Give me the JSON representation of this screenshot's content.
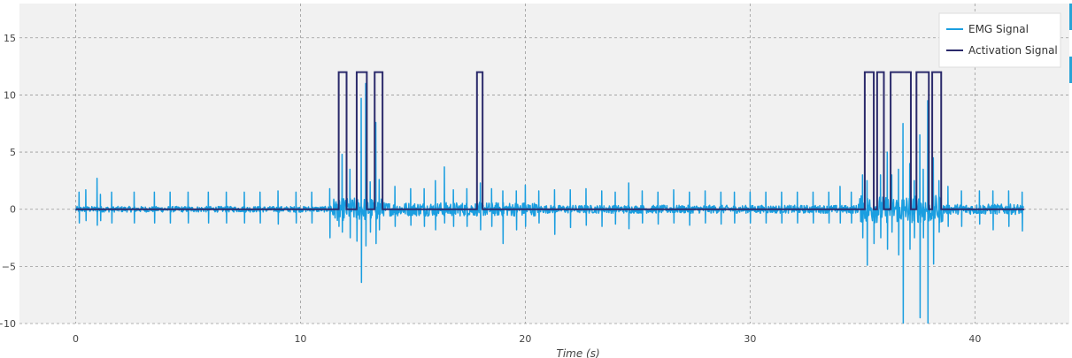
{
  "chart_data": {
    "type": "line",
    "title": "",
    "xlabel": "Time (s)",
    "ylabel": "",
    "xlim": [
      -2.5,
      44.2
    ],
    "ylim": [
      -10,
      18
    ],
    "x_ticks": [
      0,
      10,
      20,
      30,
      40
    ],
    "y_ticks": [
      -10,
      -5,
      0,
      5,
      10,
      15
    ],
    "grid": true,
    "legend_position": "top-right",
    "background": "#f1f1f1",
    "series": [
      {
        "name": "EMG Signal",
        "color": "#1a9ee0",
        "kind": "emg",
        "x_range": [
          0,
          42.2
        ],
        "spikes": [
          [
            0.15,
            1.5,
            -1.2
          ],
          [
            0.45,
            1.7,
            -1.0
          ],
          [
            0.95,
            2.7,
            -1.4
          ],
          [
            1.1,
            1.3,
            -1.0
          ],
          [
            1.6,
            1.5,
            -1.2
          ],
          [
            2.6,
            1.5,
            -1.2
          ],
          [
            3.5,
            1.5,
            -1.2
          ],
          [
            4.2,
            1.5,
            -1.2
          ],
          [
            5.0,
            1.5,
            -1.2
          ],
          [
            5.9,
            1.5,
            -1.2
          ],
          [
            6.7,
            1.5,
            -1.2
          ],
          [
            7.5,
            1.5,
            -1.2
          ],
          [
            8.2,
            1.5,
            -1.2
          ],
          [
            9.0,
            1.6,
            -1.3
          ],
          [
            9.8,
            1.5,
            -1.2
          ],
          [
            10.5,
            1.5,
            -1.2
          ],
          [
            11.3,
            1.8,
            -2.5
          ],
          [
            11.7,
            5.2,
            -1.5
          ],
          [
            11.85,
            4.8,
            -2.0
          ],
          [
            12.2,
            3.5,
            -2.5
          ],
          [
            12.5,
            2.6,
            -2.8
          ],
          [
            12.7,
            9.7,
            -6.4
          ],
          [
            12.9,
            11.0,
            -3.2
          ],
          [
            13.1,
            2.4,
            -2.0
          ],
          [
            13.35,
            7.6,
            -3.0
          ],
          [
            13.5,
            2.6,
            -1.8
          ],
          [
            14.2,
            2.0,
            -1.5
          ],
          [
            14.9,
            1.8,
            -1.4
          ],
          [
            15.5,
            1.8,
            -1.5
          ],
          [
            16.0,
            2.5,
            -1.8
          ],
          [
            16.4,
            3.7,
            -1.2
          ],
          [
            16.8,
            1.7,
            -1.5
          ],
          [
            17.4,
            1.8,
            -1.5
          ],
          [
            18.0,
            2.3,
            -1.8
          ],
          [
            18.5,
            1.8,
            -1.5
          ],
          [
            19.0,
            1.6,
            -3.0
          ],
          [
            19.6,
            1.6,
            -1.8
          ],
          [
            20.0,
            2.1,
            -1.5
          ],
          [
            20.6,
            1.6,
            -1.2
          ],
          [
            21.3,
            1.7,
            -2.2
          ],
          [
            22.0,
            1.7,
            -1.6
          ],
          [
            22.7,
            1.8,
            -1.4
          ],
          [
            23.4,
            1.6,
            -1.5
          ],
          [
            24.0,
            1.5,
            -1.3
          ],
          [
            24.6,
            2.3,
            -1.7
          ],
          [
            25.2,
            1.6,
            -1.2
          ],
          [
            25.9,
            1.5,
            -1.3
          ],
          [
            26.6,
            1.7,
            -1.2
          ],
          [
            27.3,
            1.5,
            -1.4
          ],
          [
            28.0,
            1.6,
            -1.2
          ],
          [
            28.7,
            1.5,
            -1.3
          ],
          [
            29.3,
            1.5,
            -1.2
          ],
          [
            30.0,
            1.5,
            -1.2
          ],
          [
            30.7,
            1.5,
            -1.2
          ],
          [
            31.4,
            1.5,
            -1.2
          ],
          [
            32.1,
            1.5,
            -1.2
          ],
          [
            32.8,
            1.5,
            -1.2
          ],
          [
            33.5,
            1.5,
            -1.2
          ],
          [
            34.0,
            2.0,
            -1.2
          ],
          [
            34.5,
            1.5,
            -1.2
          ],
          [
            35.0,
            3.0,
            -2.5
          ],
          [
            35.2,
            2.5,
            -4.9
          ],
          [
            35.5,
            4.5,
            -3.0
          ],
          [
            35.8,
            3.0,
            -2.5
          ],
          [
            36.1,
            5.0,
            -3.5
          ],
          [
            36.3,
            3.0,
            -2.0
          ],
          [
            36.6,
            3.5,
            -4.0
          ],
          [
            36.8,
            7.5,
            -10.0
          ],
          [
            37.1,
            4.0,
            -3.5
          ],
          [
            37.3,
            2.5,
            -2.5
          ],
          [
            37.55,
            6.5,
            -9.5
          ],
          [
            37.7,
            3.5,
            -2.5
          ],
          [
            37.9,
            9.5,
            -10.0
          ],
          [
            38.15,
            4.5,
            -4.8
          ],
          [
            38.4,
            2.5,
            -2.0
          ],
          [
            38.8,
            2.0,
            -1.5
          ],
          [
            39.4,
            1.6,
            -1.5
          ],
          [
            40.2,
            1.6,
            -1.3
          ],
          [
            40.8,
            1.6,
            -1.8
          ],
          [
            41.5,
            1.6,
            -1.5
          ],
          [
            42.1,
            1.5,
            -1.9
          ]
        ],
        "noise_regions": [
          [
            0.0,
            11.3,
            0.25
          ],
          [
            11.3,
            13.6,
            1.0
          ],
          [
            13.6,
            20.5,
            0.6
          ],
          [
            20.5,
            34.8,
            0.35
          ],
          [
            34.8,
            38.6,
            1.2
          ],
          [
            38.6,
            42.2,
            0.45
          ]
        ]
      },
      {
        "name": "Activation Signal",
        "color": "#2b2a6b",
        "kind": "step",
        "baseline": 0,
        "high": 12,
        "x_range": [
          0,
          42.2
        ],
        "active_intervals": [
          [
            11.7,
            12.05
          ],
          [
            12.5,
            12.95
          ],
          [
            13.3,
            13.65
          ],
          [
            17.85,
            18.1
          ],
          [
            35.1,
            35.5
          ],
          [
            35.65,
            35.95
          ],
          [
            36.25,
            37.15
          ],
          [
            37.4,
            37.95
          ],
          [
            38.1,
            38.5
          ]
        ]
      }
    ]
  }
}
